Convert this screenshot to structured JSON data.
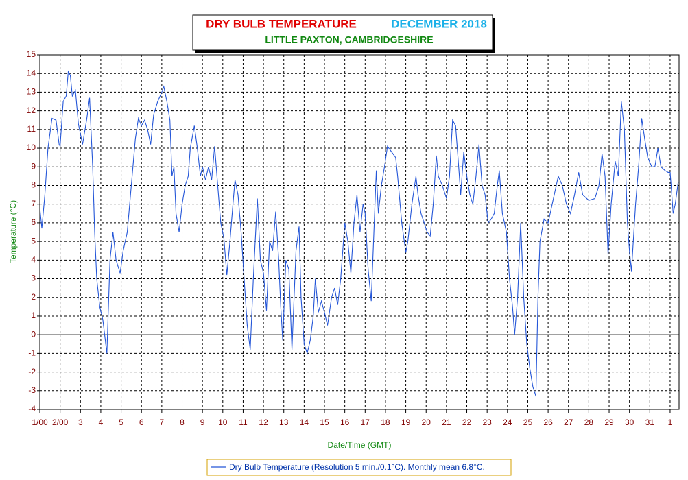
{
  "chart_data": {
    "type": "line",
    "title": "DRY BULB TEMPERATURE",
    "title_date": "DECEMBER 2018",
    "subtitle": "LITTLE PAXTON, CAMBRIDGESHIRE",
    "xlabel": "Date/Time (GMT)",
    "ylabel": "Temperature (°C)",
    "xlim": [
      1,
      32.44
    ],
    "ylim": [
      -4,
      15
    ],
    "xticks": [
      {
        "value": 1,
        "label": "1/00"
      },
      {
        "value": 2,
        "label": "2/00"
      },
      3,
      4,
      5,
      6,
      7,
      8,
      9,
      10,
      11,
      12,
      13,
      14,
      15,
      16,
      17,
      18,
      19,
      20,
      21,
      22,
      23,
      24,
      25,
      26,
      27,
      28,
      29,
      30,
      31,
      {
        "value": 32,
        "label": "1"
      }
    ],
    "yticks": [
      -4,
      -3,
      -2,
      -1,
      0,
      1,
      2,
      3,
      4,
      5,
      6,
      7,
      8,
      9,
      10,
      11,
      12,
      13,
      14,
      15
    ],
    "grid": true,
    "x": [
      1.0,
      1.1,
      1.25,
      1.4,
      1.6,
      1.8,
      1.95,
      2.0,
      2.15,
      2.3,
      2.4,
      2.5,
      2.6,
      2.75,
      2.9,
      3.1,
      3.3,
      3.45,
      3.6,
      3.7,
      3.8,
      3.95,
      4.1,
      4.3,
      4.45,
      4.6,
      4.75,
      4.95,
      5.1,
      5.3,
      5.5,
      5.7,
      5.85,
      6.0,
      6.15,
      6.3,
      6.45,
      6.6,
      6.8,
      7.0,
      7.1,
      7.25,
      7.4,
      7.5,
      7.6,
      7.7,
      7.85,
      8.0,
      8.15,
      8.3,
      8.4,
      8.6,
      8.75,
      8.9,
      9.0,
      9.15,
      9.3,
      9.45,
      9.6,
      9.75,
      9.9,
      10.05,
      10.2,
      10.35,
      10.5,
      10.6,
      10.75,
      10.9,
      11.05,
      11.2,
      11.35,
      11.5,
      11.7,
      11.85,
      12.0,
      12.15,
      12.3,
      12.45,
      12.6,
      12.75,
      12.85,
      12.95,
      13.1,
      13.25,
      13.4,
      13.6,
      13.75,
      13.85,
      14.0,
      14.15,
      14.3,
      14.45,
      14.55,
      14.7,
      14.85,
      15.0,
      15.15,
      15.35,
      15.5,
      15.65,
      15.8,
      15.9,
      16.0,
      16.15,
      16.3,
      16.45,
      16.6,
      16.75,
      16.9,
      17.0,
      17.15,
      17.3,
      17.45,
      17.55,
      17.65,
      17.8,
      17.95,
      18.1,
      18.3,
      18.5,
      18.6,
      18.8,
      19.0,
      19.1,
      19.3,
      19.5,
      19.6,
      19.75,
      19.9,
      20.05,
      20.2,
      20.35,
      20.5,
      20.6,
      20.8,
      21.0,
      21.15,
      21.3,
      21.45,
      21.6,
      21.7,
      21.85,
      22.0,
      22.15,
      22.3,
      22.45,
      22.6,
      22.75,
      22.9,
      23.05,
      23.2,
      23.35,
      23.5,
      23.6,
      23.75,
      23.95,
      24.1,
      24.25,
      24.35,
      24.5,
      24.65,
      24.8,
      24.95,
      25.1,
      25.25,
      25.4,
      25.5,
      25.6,
      25.8,
      26.0,
      26.3,
      26.5,
      26.7,
      26.9,
      27.1,
      27.3,
      27.5,
      27.7,
      28.0,
      28.3,
      28.5,
      28.65,
      28.8,
      28.95,
      29.1,
      29.3,
      29.45,
      29.6,
      29.75,
      29.9,
      30.0,
      30.1,
      30.3,
      30.45,
      30.6,
      30.75,
      30.9,
      31.1,
      31.25,
      31.4,
      31.55,
      31.75,
      31.9,
      32.0,
      32.15,
      32.25,
      32.4
    ],
    "series": [
      {
        "name": "Dry Bulb Temperature (Resolution 5 min./0.1°C). Monthly mean 6.8°C.",
        "color": "#2456d8",
        "values": [
          6.8,
          5.7,
          7.5,
          10,
          11.6,
          11.5,
          10.2,
          10.1,
          12.5,
          12.8,
          14.1,
          13.9,
          12.8,
          13.1,
          11.3,
          10.2,
          11.5,
          12.7,
          9,
          5.5,
          3,
          1.5,
          0.8,
          -1,
          4,
          5.5,
          4,
          3.3,
          4.5,
          5.5,
          8,
          10.5,
          11.6,
          11.2,
          11.5,
          11,
          10.2,
          11.8,
          12.5,
          13,
          13.3,
          12.5,
          11.5,
          8.5,
          9,
          6.5,
          5.5,
          7,
          8,
          8.5,
          10,
          11.2,
          10,
          8.5,
          9,
          8.3,
          9,
          8.3,
          10.1,
          8,
          6,
          5.2,
          3.2,
          5,
          7,
          8.3,
          7.5,
          5.5,
          3,
          0.5,
          -0.8,
          3,
          7.3,
          4,
          3.3,
          1.3,
          5,
          4.5,
          6.6,
          4,
          1.5,
          -0.3,
          4,
          3.5,
          -0.8,
          4.5,
          5.8,
          2,
          -0.5,
          -1,
          -0.3,
          1,
          3,
          1.2,
          1.8,
          1.2,
          0.5,
          2,
          2.5,
          1.6,
          3,
          4.5,
          6,
          5,
          3.3,
          6,
          7.5,
          5.5,
          7,
          6.5,
          3.5,
          1.8,
          6,
          8.8,
          6.5,
          8,
          9,
          10.1,
          9.8,
          9.5,
          8.5,
          6,
          4.4,
          5,
          7,
          8.5,
          7.5,
          6.5,
          6,
          5.5,
          5.3,
          7,
          9.6,
          8.5,
          8,
          7.3,
          8.5,
          11.5,
          11.2,
          9,
          7.5,
          9.8,
          8.5,
          7.5,
          7,
          8.5,
          10.2,
          8,
          7.5,
          6,
          6.2,
          6.5,
          8,
          8.8,
          6.5,
          5.5,
          3,
          1.5,
          0,
          2,
          6,
          2,
          -0.5,
          -1.8,
          -2.8,
          -3.3,
          2,
          5,
          6.2,
          6,
          7.5,
          8.5,
          8,
          7,
          6.5,
          7.5,
          8.7,
          7.5,
          7.2,
          7.3,
          8,
          9.7,
          8.5,
          4.3,
          7,
          9.3,
          8.5,
          12.5,
          11,
          6,
          4.5,
          3.4,
          7,
          9,
          11.6,
          10.5,
          9.5,
          9,
          9,
          10,
          9,
          8.8,
          8.7,
          8.7,
          6.5,
          7,
          8.2
        ]
      }
    ]
  }
}
